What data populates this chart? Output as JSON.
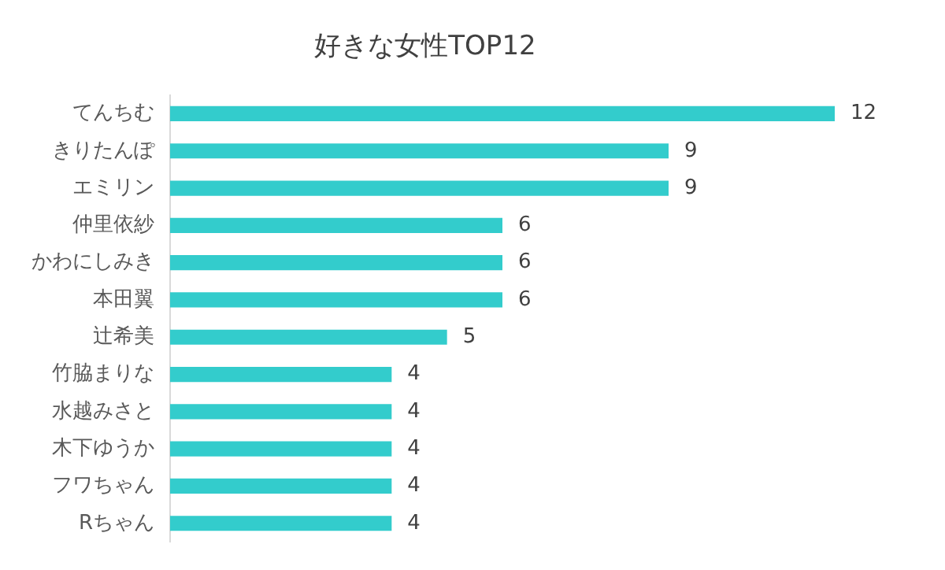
{
  "chart_data": {
    "type": "bar",
    "orientation": "horizontal",
    "title": "好きな女性TOP12",
    "categories": [
      "てんちむ",
      "きりたんぽ",
      "エミリン",
      "仲里依紗",
      "かわにしみき",
      "本田翼",
      "辻希美",
      "竹脇まりな",
      "水越みさと",
      "木下ゆうか",
      "フワちゃん",
      "Rちゃん"
    ],
    "values": [
      12,
      9,
      9,
      6,
      6,
      6,
      5,
      4,
      4,
      4,
      4,
      4
    ],
    "color": "#33cccc",
    "data_labels": true
  }
}
